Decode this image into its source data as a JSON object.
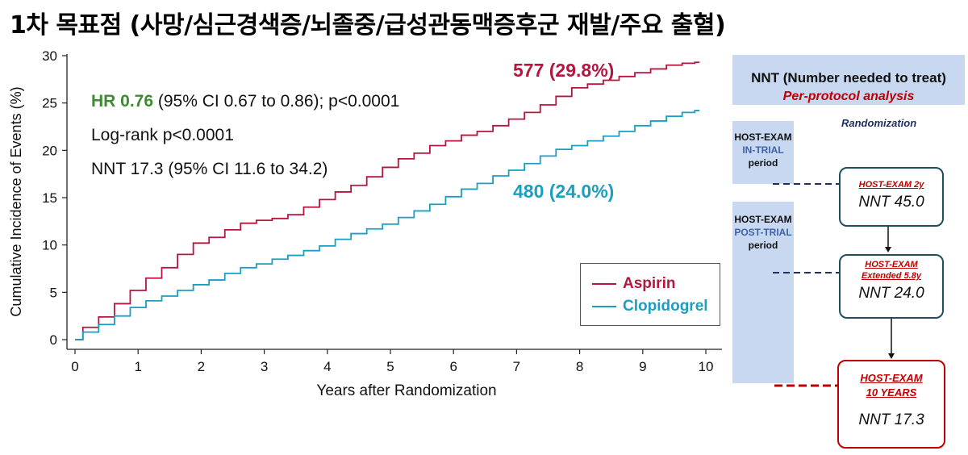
{
  "title": "1차 목표점 (사망/심근경색증/뇌졸중/급성관동맥증후군 재발/주요 출혈)",
  "stats": {
    "hr_label": "HR 0.76",
    "hr_rest": " (95% CI 0.67 to 0.86); p<0.0001",
    "logrank": "Log-rank p<0.0001",
    "nnt": "NNT 17.3 (95% CI 11.6 to 34.2)"
  },
  "colors": {
    "aspirin": "#b5163d",
    "clopidogrel": "#1a9fc1",
    "hr": "#3d8b2f",
    "accent_red": "#c00000",
    "box_border": "#1f4e5c",
    "panel_blue": "#c7d8f0"
  },
  "chart_data": {
    "type": "line",
    "title": "",
    "xlabel": "Years after Randomization",
    "ylabel": "Cumulative Incidence of Events (%)",
    "xlim": [
      0,
      10
    ],
    "ylim": [
      0,
      30
    ],
    "xticks": [
      "0",
      "1",
      "2",
      "3",
      "4",
      "5",
      "6",
      "7",
      "8",
      "9",
      "10"
    ],
    "yticks": [
      "0",
      "5",
      "10",
      "15",
      "20",
      "25",
      "30"
    ],
    "legend_position": "bottom-right",
    "series": [
      {
        "name": "Aspirin",
        "end_label": "577 (29.8%)",
        "x": [
          0,
          0.25,
          0.5,
          0.75,
          1,
          1.25,
          1.5,
          1.75,
          2,
          2.25,
          2.5,
          2.75,
          3,
          3.25,
          3.5,
          3.75,
          4,
          4.25,
          4.5,
          4.75,
          5,
          5.25,
          5.5,
          5.75,
          6,
          6.25,
          6.5,
          6.75,
          7,
          7.25,
          7.5,
          7.75,
          8,
          8.25,
          8.5,
          8.75,
          9,
          9.25,
          9.5,
          9.75,
          9.9
        ],
        "values": [
          0,
          1.3,
          2.4,
          3.8,
          5.2,
          6.5,
          7.6,
          9.0,
          10.2,
          10.8,
          11.6,
          12.3,
          12.6,
          12.8,
          13.2,
          14.0,
          14.8,
          15.6,
          16.3,
          17.2,
          18.2,
          19.1,
          19.7,
          20.5,
          21.0,
          21.6,
          22.0,
          22.6,
          23.3,
          24.0,
          24.8,
          25.7,
          26.6,
          27.0,
          27.4,
          27.8,
          28.2,
          28.6,
          29.0,
          29.2,
          29.3
        ]
      },
      {
        "name": "Clopidogrel",
        "end_label": "480 (24.0%)",
        "x": [
          0,
          0.25,
          0.5,
          0.75,
          1,
          1.25,
          1.5,
          1.75,
          2,
          2.25,
          2.5,
          2.75,
          3,
          3.25,
          3.5,
          3.75,
          4,
          4.25,
          4.5,
          4.75,
          5,
          5.25,
          5.5,
          5.75,
          6,
          6.25,
          6.5,
          6.75,
          7,
          7.25,
          7.5,
          7.75,
          8,
          8.25,
          8.5,
          8.75,
          9,
          9.25,
          9.5,
          9.75,
          9.9
        ],
        "values": [
          0,
          0.8,
          1.6,
          2.5,
          3.4,
          4.1,
          4.6,
          5.2,
          5.8,
          6.3,
          7.0,
          7.6,
          8.0,
          8.5,
          8.9,
          9.4,
          9.9,
          10.6,
          11.2,
          11.7,
          12.2,
          12.9,
          13.6,
          14.3,
          15.1,
          15.9,
          16.5,
          17.3,
          17.9,
          18.6,
          19.4,
          20.1,
          20.5,
          21.0,
          21.5,
          22.0,
          22.6,
          23.1,
          23.6,
          24.0,
          24.2
        ]
      }
    ]
  },
  "diagram": {
    "header_title": "NNT (Number needed to treat)",
    "header_sub": "Per-protocol analysis",
    "randomization": "Randomization",
    "in_trial": {
      "line1": "HOST-EXAM",
      "line2": "IN-TRIAL",
      "line3": "period"
    },
    "post_trial": {
      "line1": "HOST-EXAM",
      "line2": "POST-TRIAL",
      "line3": "period"
    },
    "box1": {
      "tag": "HOST-EXAM 2y",
      "value": "NNT 45.0"
    },
    "box2": {
      "tag1": "HOST-EXAM",
      "tag2": "Extended 5.8y",
      "value": "NNT 24.0"
    },
    "box3": {
      "tag1": "HOST-EXAM",
      "tag2": "10 YEARS",
      "value": "NNT 17.3"
    }
  }
}
